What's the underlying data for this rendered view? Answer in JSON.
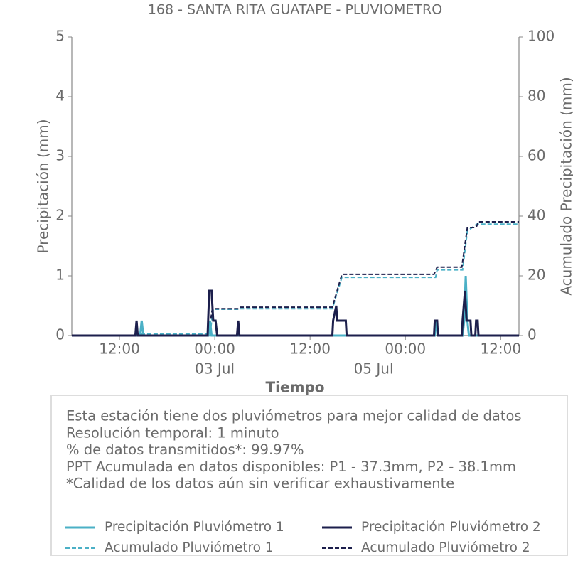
{
  "chart_data": {
    "type": "line",
    "title": "168 - SANTA RITA GUATAPE - PLUVIOMETRO",
    "ylabel": "Precipitación (mm)",
    "y2label": "Acumulado Precipitación (mm)",
    "xlabel": "Tiempo",
    "xlim": [
      -18,
      38.3
    ],
    "xticks": [
      {
        "value": -12,
        "label": "12:00"
      },
      {
        "value": 0,
        "label": "00:00"
      },
      {
        "value": 12,
        "label": "12:00"
      },
      {
        "value": 24,
        "label": "00:00"
      },
      {
        "value": 36,
        "label": "12:00"
      }
    ],
    "xdate_labels": [
      {
        "value": 0,
        "label": "03 Jul"
      },
      {
        "value": 20,
        "label": "05 Jul"
      }
    ],
    "ylim": [
      0,
      5
    ],
    "yticks": [
      0,
      1,
      2,
      3,
      4,
      5
    ],
    "y2lim": [
      0,
      100
    ],
    "y2ticks": [
      0,
      20,
      40,
      60,
      80,
      100
    ],
    "series": [
      {
        "name": "Precipitación Pluviómetro 1",
        "color": "#4bb0c6",
        "style": "solid",
        "x": [
          -18,
          -9.4,
          -9.2,
          -9.0,
          -0.8,
          -0.6,
          -0.4,
          27.7,
          27.9,
          28.1,
          31.2,
          31.4,
          31.6,
          31.8,
          32.0,
          38.3
        ],
        "values": [
          0,
          0,
          0.25,
          0,
          0,
          0.25,
          0,
          0,
          0.25,
          0,
          0,
          0.25,
          1.0,
          0.25,
          0,
          0
        ]
      },
      {
        "name": "Precipitación Pluviómetro 2",
        "color": "#1c1f4c",
        "style": "solid",
        "x": [
          -18,
          -10.0,
          -9.85,
          -9.7,
          -0.9,
          -0.7,
          -0.4,
          -0.2,
          0.1,
          0.3,
          2.8,
          2.95,
          3.1,
          14.8,
          14.9,
          15.3,
          15.4,
          16.5,
          16.6,
          27.6,
          27.7,
          28.0,
          28.1,
          31.1,
          31.2,
          31.5,
          31.7,
          32.2,
          32.3,
          32.8,
          32.9,
          33.1,
          33.2,
          38.3
        ],
        "values": [
          0,
          0,
          0.25,
          0,
          0,
          0.75,
          0.75,
          0.25,
          0.25,
          0,
          0,
          0.25,
          0,
          0,
          0.25,
          0.5,
          0.25,
          0.25,
          0,
          0,
          0.25,
          0.25,
          0,
          0,
          0.25,
          0.75,
          0.25,
          0.25,
          0,
          0,
          0.25,
          0.25,
          0,
          0
        ]
      },
      {
        "name": "Acumulado Pluviómetro 1",
        "color": "#4bb0c6",
        "style": "dashed",
        "axis": "y2",
        "x": [
          -18,
          -9.2,
          -9.2,
          -0.6,
          -0.2,
          3.0,
          3.0,
          14.8,
          16.0,
          27.8,
          28.0,
          31.2,
          31.8,
          33.0,
          38.3
        ],
        "values": [
          0,
          0,
          0.5,
          0.5,
          8.8,
          8.8,
          9.0,
          9.0,
          19.5,
          19.5,
          22.0,
          22.0,
          35.0,
          37.3,
          37.3
        ]
      },
      {
        "name": "Acumulado Pluviómetro 2",
        "color": "#1c1f4c",
        "style": "dashed",
        "axis": "y2",
        "x": [
          -18,
          -0.8,
          -0.3,
          2.9,
          3.0,
          14.8,
          16.0,
          27.6,
          28.0,
          31.1,
          31.8,
          32.9,
          33.2,
          38.3
        ],
        "values": [
          0,
          0,
          9.0,
          9.0,
          9.5,
          9.5,
          20.5,
          20.5,
          22.9,
          22.9,
          36.2,
          36.2,
          38.1,
          38.1
        ]
      }
    ],
    "notes": [
      "Esta estación tiene dos pluviómetros para mejor calidad de datos",
      "Resolución temporal: 1 minuto",
      "% de datos transmitidos*: 99.97%",
      "PPT Acumulada en datos disponibles: P1 - 37.3mm, P2 - 38.1mm",
      "*Calidad de los datos aún sin verificar exhaustivamente"
    ]
  }
}
